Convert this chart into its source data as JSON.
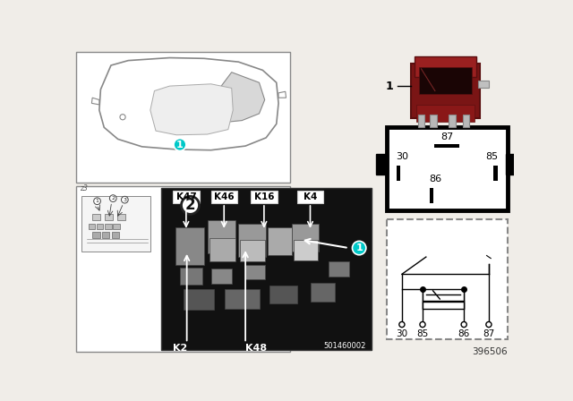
{
  "bg_color": "#f0ede8",
  "white": "#ffffff",
  "black": "#000000",
  "cyan_badge": "#00c8c8",
  "part_number": "396506",
  "image_code": "501460002",
  "relay_labels": [
    "K47",
    "K46",
    "K16",
    "K4"
  ],
  "bottom_labels": [
    "K2",
    "K48"
  ],
  "pin_labels": [
    "30",
    "85",
    "86",
    "87"
  ]
}
